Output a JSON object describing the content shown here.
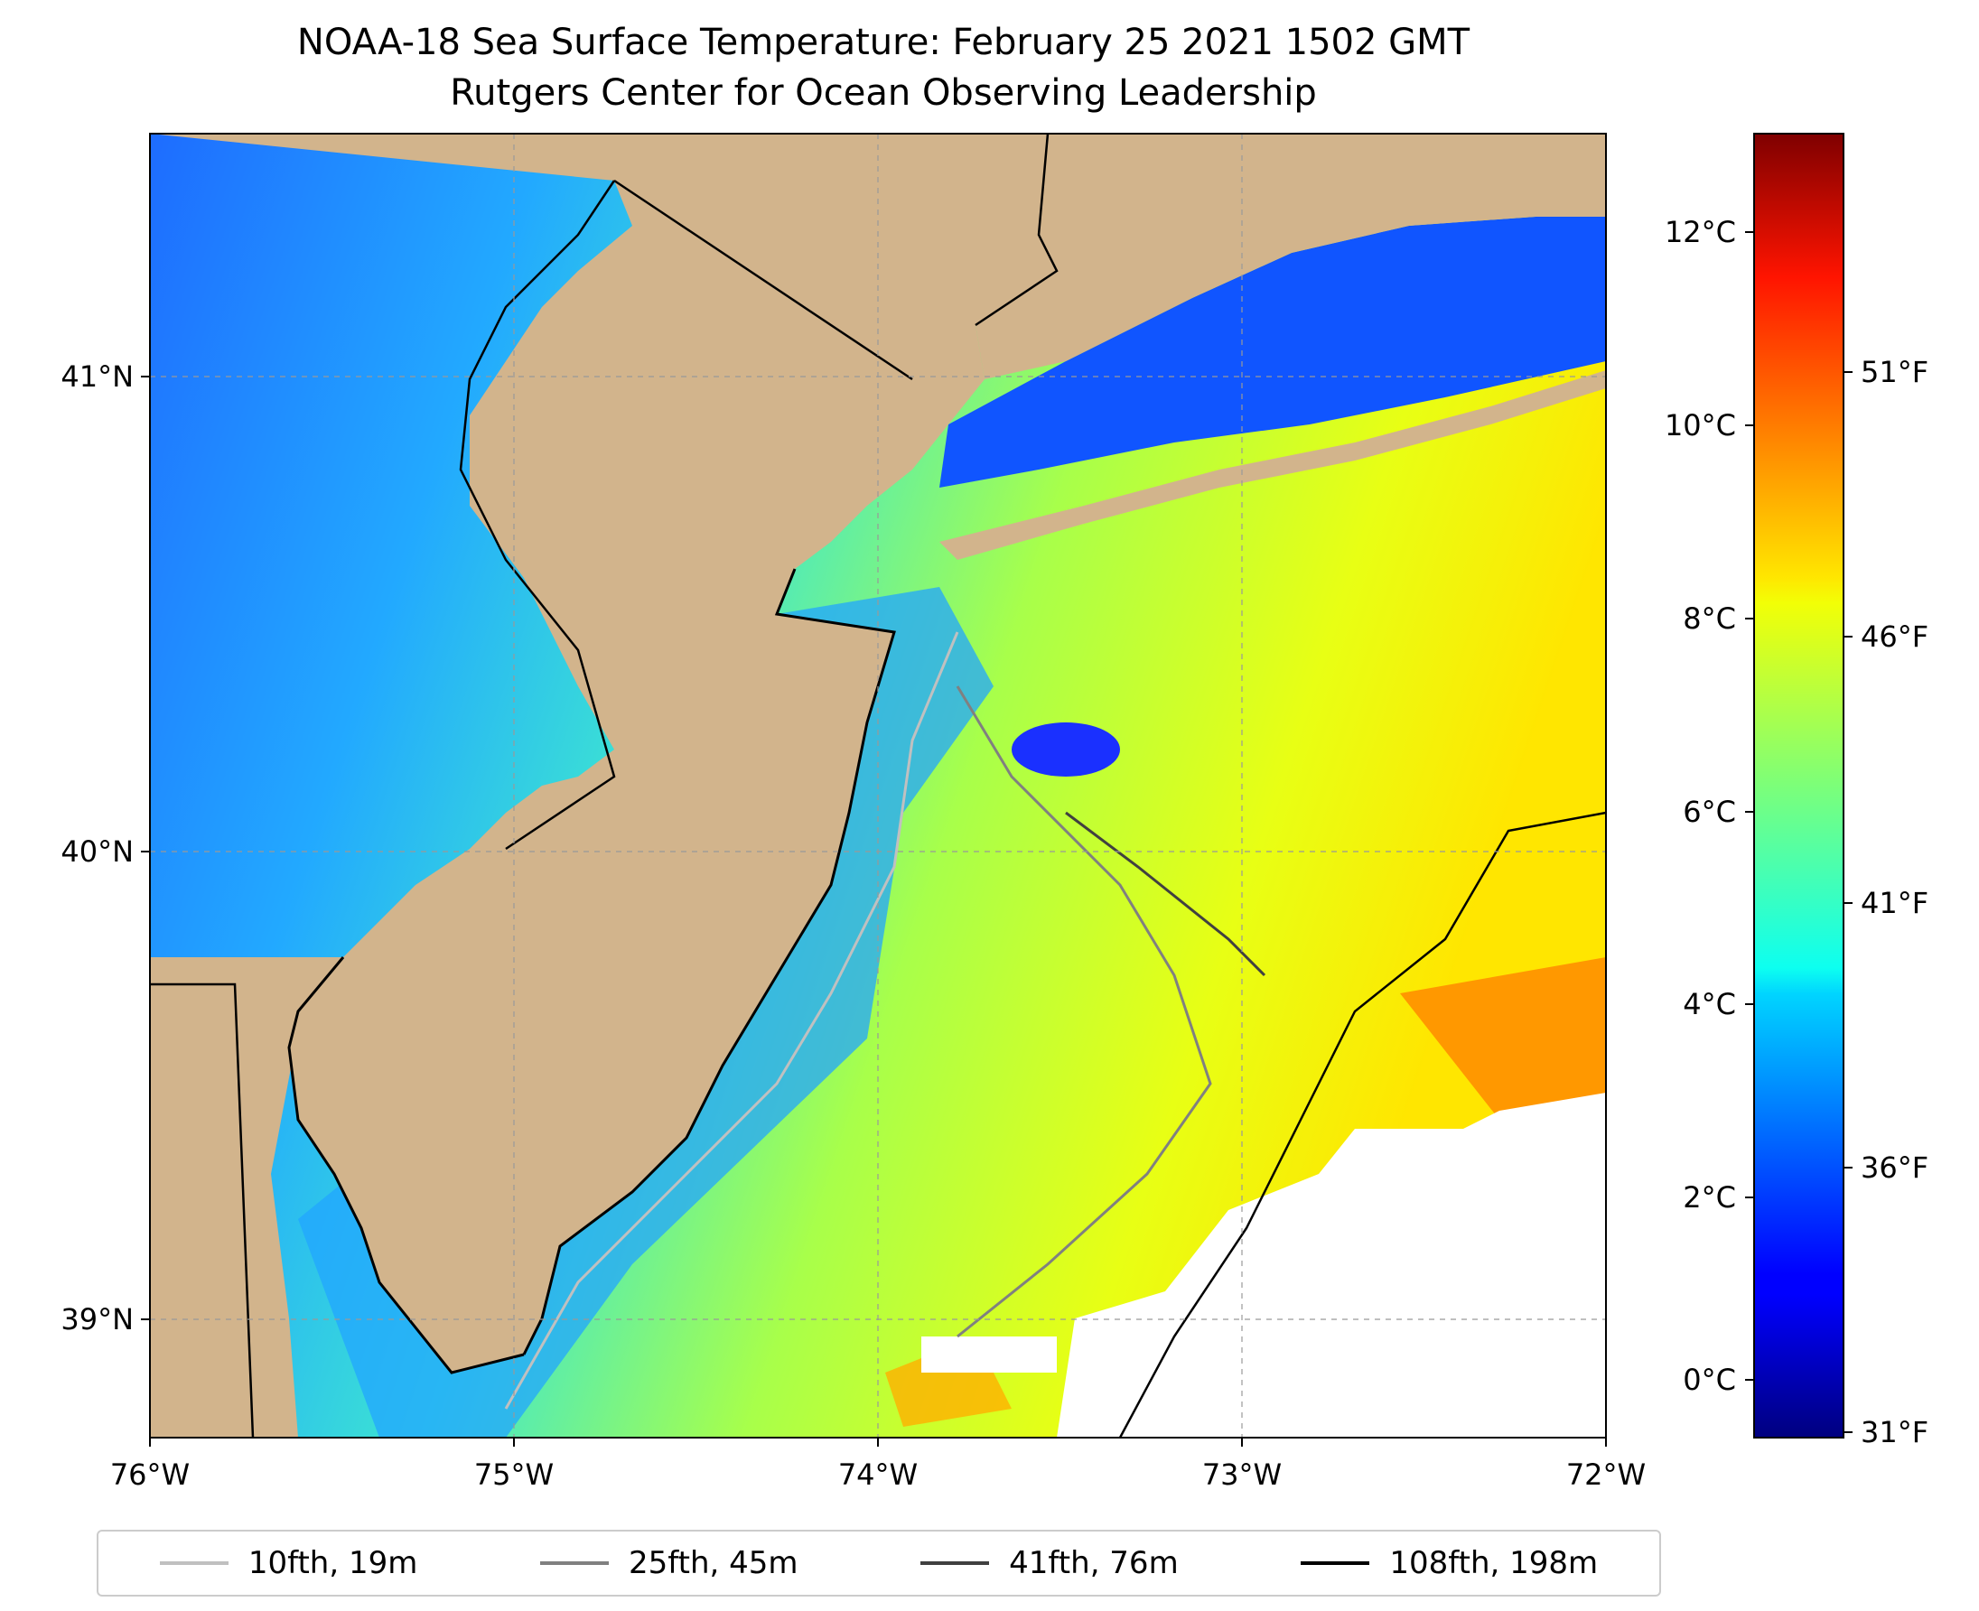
{
  "title": {
    "line1": "NOAA-18 Sea Surface Temperature: February 25 2021 1502 GMT",
    "line2": "Rutgers Center for Ocean Observing Leadership"
  },
  "map": {
    "lon_range": [
      -76,
      -72
    ],
    "lat_range": [
      38.7,
      41.5
    ],
    "x_ticks": [
      "76°W",
      "75°W",
      "74°W",
      "73°W",
      "72°W"
    ],
    "y_ticks": [
      "41°N",
      "40°N",
      "39°N"
    ],
    "land_color": "#d2b48c",
    "gridlines": true,
    "colormap": "jet"
  },
  "colorbar": {
    "celsius_ticks": [
      "12°C",
      "10°C",
      "8°C",
      "6°C",
      "4°C",
      "2°C",
      "0°C"
    ],
    "fahrenheit_ticks": [
      "51°F",
      "46°F",
      "41°F",
      "36°F",
      "31°F"
    ],
    "range_c": [
      -0.6,
      12.9
    ]
  },
  "legend": {
    "items": [
      {
        "label": "10fth, 19m",
        "color": "#c0c0c0"
      },
      {
        "label": "25fth, 45m",
        "color": "#808080"
      },
      {
        "label": "41fth, 76m",
        "color": "#404040"
      },
      {
        "label": "108fth, 198m",
        "color": "#000000"
      }
    ]
  }
}
